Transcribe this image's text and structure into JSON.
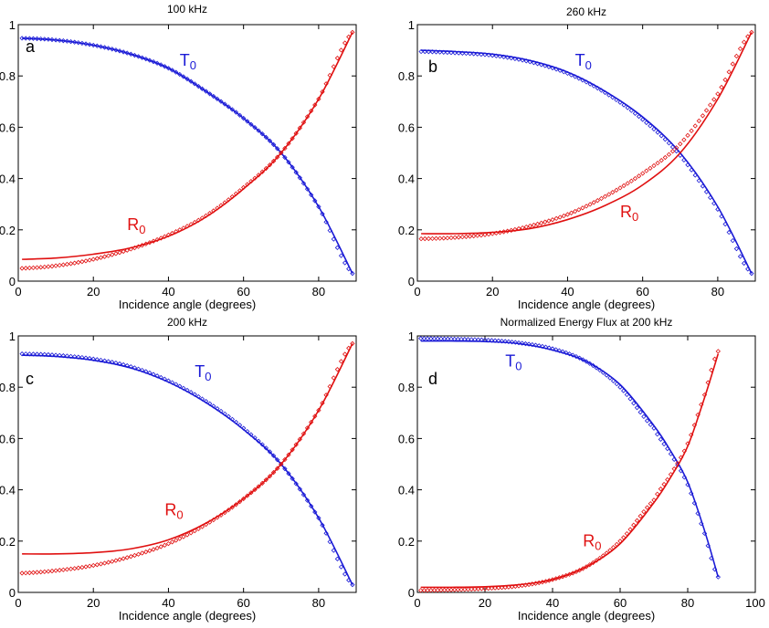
{
  "colors": {
    "T": "#1a1ad6",
    "R": "#e01010",
    "axis": "#000000"
  },
  "chart_data": [
    {
      "type": "line",
      "panel": "a",
      "title": "100 kHz",
      "xlabel": "Incidence angle (degrees)",
      "ylabel": "",
      "xlim": [
        0,
        90
      ],
      "ylim": [
        0,
        1
      ],
      "xticks": [
        0,
        20,
        40,
        60,
        80
      ],
      "yticks": [
        0,
        0.2,
        0.4,
        0.6,
        0.8,
        1
      ],
      "xtick_labels": [
        "0",
        "20",
        "40",
        "60",
        "80"
      ],
      "ytick_labels": [
        "0",
        "0.2",
        "0.4",
        "0.6",
        "0.8",
        "1"
      ],
      "grid": false,
      "labels": [
        {
          "series": "T",
          "text": "T",
          "sub": "0",
          "x": 43,
          "y": 0.84
        },
        {
          "series": "R",
          "text": "R",
          "sub": "0",
          "x": 29,
          "y": 0.2
        }
      ],
      "series": [
        {
          "key": "T",
          "style": "solid",
          "x": [
            1,
            10,
            20,
            30,
            40,
            50,
            60,
            70,
            80,
            89
          ],
          "y": [
            0.947,
            0.94,
            0.92,
            0.885,
            0.83,
            0.74,
            0.635,
            0.5,
            0.29,
            0.03
          ]
        },
        {
          "key": "T",
          "style": "diamonds",
          "x": [
            1,
            10,
            20,
            30,
            40,
            50,
            60,
            70,
            80,
            89
          ],
          "y": [
            0.947,
            0.94,
            0.92,
            0.885,
            0.83,
            0.74,
            0.635,
            0.5,
            0.29,
            0.03
          ]
        },
        {
          "key": "R",
          "style": "solid",
          "x": [
            1,
            10,
            20,
            30,
            40,
            50,
            60,
            70,
            80,
            89
          ],
          "y": [
            0.085,
            0.09,
            0.105,
            0.13,
            0.175,
            0.25,
            0.36,
            0.5,
            0.71,
            0.97
          ]
        },
        {
          "key": "R",
          "style": "diamonds",
          "x": [
            1,
            10,
            20,
            30,
            40,
            50,
            60,
            70,
            80,
            89
          ],
          "y": [
            0.05,
            0.06,
            0.085,
            0.125,
            0.18,
            0.255,
            0.365,
            0.5,
            0.71,
            0.97
          ]
        }
      ]
    },
    {
      "type": "line",
      "panel": "b",
      "title": "260 kHz",
      "xlabel": "Incidence angle (degrees)",
      "ylabel": "",
      "xlim": [
        0,
        90
      ],
      "ylim": [
        0,
        1
      ],
      "xticks": [
        0,
        20,
        40,
        60,
        80
      ],
      "yticks": [
        0,
        0.2,
        0.4,
        0.6,
        0.8,
        1
      ],
      "xtick_labels": [
        "0",
        "20",
        "40",
        "60",
        "80"
      ],
      "ytick_labels": [
        "0",
        "0.2",
        "0.4",
        "0.6",
        "0.8",
        "1"
      ],
      "grid": false,
      "labels": [
        {
          "series": "T",
          "text": "T",
          "sub": "0",
          "x": 42,
          "y": 0.84
        },
        {
          "series": "R",
          "text": "R",
          "sub": "0",
          "x": 54,
          "y": 0.25
        }
      ],
      "series": [
        {
          "key": "T",
          "style": "solid",
          "x": [
            1,
            10,
            20,
            30,
            40,
            50,
            60,
            70,
            80,
            89
          ],
          "y": [
            0.9,
            0.895,
            0.885,
            0.86,
            0.815,
            0.74,
            0.64,
            0.5,
            0.29,
            0.03
          ]
        },
        {
          "key": "T",
          "style": "diamonds",
          "x": [
            1,
            10,
            20,
            30,
            40,
            50,
            60,
            70,
            80,
            89
          ],
          "y": [
            0.895,
            0.89,
            0.88,
            0.855,
            0.81,
            0.735,
            0.63,
            0.49,
            0.28,
            0.03
          ]
        },
        {
          "key": "R",
          "style": "solid",
          "x": [
            1,
            10,
            20,
            30,
            40,
            50,
            60,
            70,
            80,
            89
          ],
          "y": [
            0.185,
            0.185,
            0.19,
            0.205,
            0.24,
            0.295,
            0.375,
            0.5,
            0.71,
            0.97
          ]
        },
        {
          "key": "R",
          "style": "diamonds",
          "x": [
            1,
            10,
            20,
            30,
            40,
            50,
            60,
            70,
            80,
            89
          ],
          "y": [
            0.165,
            0.17,
            0.185,
            0.215,
            0.26,
            0.33,
            0.42,
            0.535,
            0.73,
            0.97
          ]
        }
      ]
    },
    {
      "type": "line",
      "panel": "c",
      "title": "200 kHz",
      "xlabel": "Incidence angle (degrees)",
      "ylabel": "",
      "xlim": [
        0,
        90
      ],
      "ylim": [
        0,
        1
      ],
      "xticks": [
        0,
        20,
        40,
        60,
        80
      ],
      "yticks": [
        0,
        0.2,
        0.4,
        0.6,
        0.8,
        1
      ],
      "xtick_labels": [
        "0",
        "20",
        "40",
        "60",
        "80"
      ],
      "ytick_labels": [
        "0",
        "0.2",
        "0.4",
        "0.6",
        "0.8",
        "1"
      ],
      "grid": false,
      "labels": [
        {
          "series": "T",
          "text": "T",
          "sub": "0",
          "x": 47,
          "y": 0.84
        },
        {
          "series": "R",
          "text": "R",
          "sub": "0",
          "x": 39,
          "y": 0.3
        }
      ],
      "series": [
        {
          "key": "T",
          "style": "solid",
          "x": [
            1,
            10,
            20,
            30,
            40,
            50,
            60,
            70,
            80,
            89
          ],
          "y": [
            0.925,
            0.92,
            0.905,
            0.875,
            0.82,
            0.74,
            0.635,
            0.5,
            0.29,
            0.03
          ]
        },
        {
          "key": "T",
          "style": "diamonds",
          "x": [
            1,
            10,
            20,
            30,
            40,
            50,
            60,
            70,
            80,
            89
          ],
          "y": [
            0.93,
            0.925,
            0.91,
            0.88,
            0.825,
            0.745,
            0.64,
            0.5,
            0.29,
            0.03
          ]
        },
        {
          "key": "R",
          "style": "solid",
          "x": [
            1,
            10,
            20,
            30,
            40,
            50,
            60,
            70,
            80,
            89
          ],
          "y": [
            0.15,
            0.15,
            0.155,
            0.17,
            0.205,
            0.27,
            0.365,
            0.5,
            0.71,
            0.97
          ]
        },
        {
          "key": "R",
          "style": "diamonds",
          "x": [
            1,
            10,
            20,
            30,
            40,
            50,
            60,
            70,
            80,
            89
          ],
          "y": [
            0.075,
            0.085,
            0.105,
            0.14,
            0.19,
            0.265,
            0.365,
            0.5,
            0.71,
            0.97
          ]
        }
      ]
    },
    {
      "type": "line",
      "panel": "d",
      "title": "Normalized Energy Flux at 200 kHz",
      "xlabel": "Incidence angle (degrees)",
      "ylabel": "",
      "xlim": [
        0,
        100
      ],
      "ylim": [
        0,
        1
      ],
      "xticks": [
        0,
        20,
        40,
        60,
        80,
        100
      ],
      "yticks": [
        0,
        0.2,
        0.4,
        0.6,
        0.8,
        1
      ],
      "xtick_labels": [
        "0",
        "20",
        "40",
        "60",
        "80",
        "100"
      ],
      "ytick_labels": [
        "0",
        "0.2",
        "0.4",
        "0.6",
        "0.8",
        "1"
      ],
      "grid": false,
      "labels": [
        {
          "series": "T",
          "text": "T",
          "sub": "0",
          "x": 26,
          "y": 0.88
        },
        {
          "series": "R",
          "text": "R",
          "sub": "0",
          "x": 49,
          "y": 0.18
        }
      ],
      "series": [
        {
          "key": "T",
          "style": "solid",
          "x": [
            1,
            10,
            20,
            30,
            40,
            50,
            60,
            70,
            75,
            80,
            85,
            89
          ],
          "y": [
            0.98,
            0.98,
            0.978,
            0.97,
            0.945,
            0.9,
            0.81,
            0.65,
            0.55,
            0.43,
            0.24,
            0.06
          ]
        },
        {
          "key": "T",
          "style": "diamonds",
          "x": [
            1,
            10,
            20,
            30,
            40,
            50,
            60,
            70,
            75,
            80,
            85,
            89
          ],
          "y": [
            0.99,
            0.988,
            0.984,
            0.973,
            0.95,
            0.9,
            0.8,
            0.64,
            0.54,
            0.42,
            0.23,
            0.06
          ]
        },
        {
          "key": "R",
          "style": "solid",
          "x": [
            1,
            10,
            20,
            30,
            40,
            50,
            60,
            70,
            75,
            80,
            85,
            89
          ],
          "y": [
            0.02,
            0.02,
            0.022,
            0.03,
            0.05,
            0.1,
            0.19,
            0.35,
            0.45,
            0.57,
            0.76,
            0.93
          ]
        },
        {
          "key": "R",
          "style": "diamonds",
          "x": [
            1,
            10,
            20,
            30,
            40,
            50,
            60,
            70,
            75,
            80,
            85,
            89
          ],
          "y": [
            0.008,
            0.01,
            0.015,
            0.025,
            0.05,
            0.1,
            0.2,
            0.36,
            0.46,
            0.58,
            0.77,
            0.94
          ]
        }
      ]
    }
  ]
}
